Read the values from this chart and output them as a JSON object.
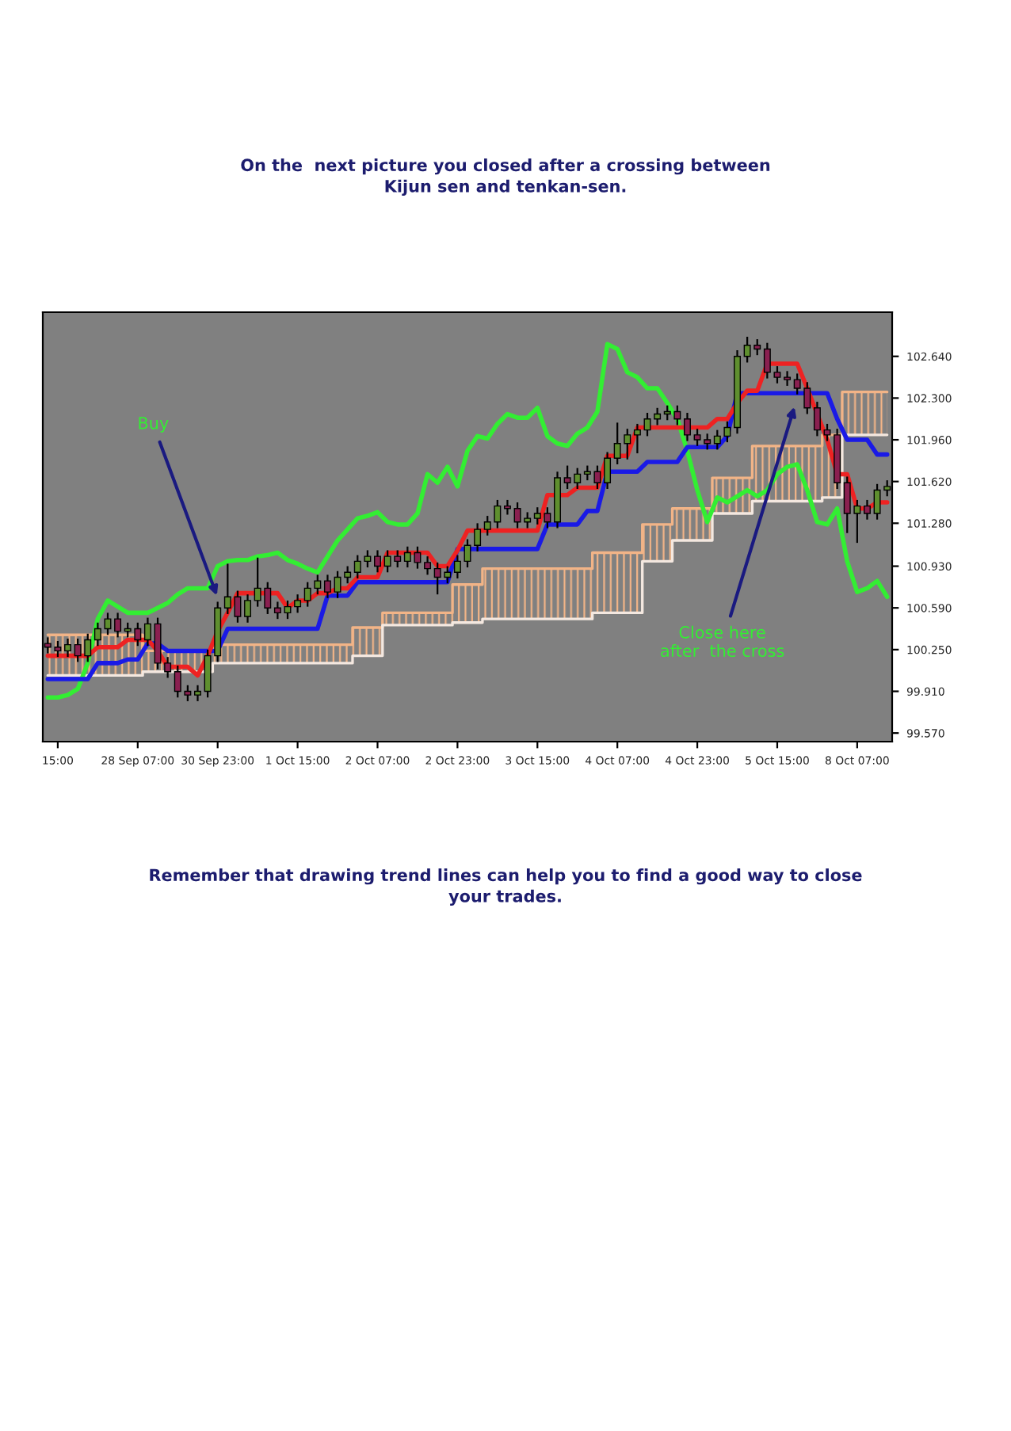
{
  "chart_data": {
    "type": "candlestick",
    "title": "On the  next picture you closed after a crossing between\nKijun sen and tenkan-sen.",
    "categories": [
      null,
      "15:00",
      null,
      null,
      null,
      null,
      null,
      null,
      null,
      "28 Sep 07:00",
      null,
      null,
      null,
      null,
      null,
      null,
      null,
      "30 Sep 23:00",
      null,
      null,
      null,
      null,
      null,
      null,
      null,
      "1 Oct 15:00",
      null,
      null,
      null,
      null,
      null,
      null,
      null,
      "2 Oct 07:00",
      null,
      null,
      null,
      null,
      null,
      null,
      null,
      "2 Oct 23:00",
      null,
      null,
      null,
      null,
      null,
      null,
      null,
      "3 Oct 15:00",
      null,
      null,
      null,
      null,
      null,
      null,
      null,
      "4 Oct 07:00",
      null,
      null,
      null,
      null,
      null,
      null,
      null,
      "4 Oct 23:00",
      null,
      null,
      null,
      null,
      null,
      null,
      null,
      "5 Oct 15:00",
      null,
      null,
      null,
      null,
      null,
      null,
      null,
      "8 Oct 07:00",
      null,
      null,
      null
    ],
    "ohlc": [
      [
        100.3,
        100.35,
        100.22,
        100.27
      ],
      [
        100.27,
        100.32,
        100.19,
        100.24
      ],
      [
        100.24,
        100.34,
        100.19,
        100.29
      ],
      [
        100.29,
        100.34,
        100.15,
        100.2
      ],
      [
        100.2,
        100.38,
        100.15,
        100.33
      ],
      [
        100.33,
        100.47,
        100.28,
        100.42
      ],
      [
        100.42,
        100.55,
        100.37,
        100.5
      ],
      [
        100.5,
        100.55,
        100.35,
        100.4
      ],
      [
        100.4,
        100.47,
        100.35,
        100.42
      ],
      [
        100.42,
        100.47,
        100.28,
        100.33
      ],
      [
        100.33,
        100.51,
        100.28,
        100.46
      ],
      [
        100.46,
        100.51,
        100.09,
        100.14
      ],
      [
        100.14,
        100.19,
        100.02,
        100.07
      ],
      [
        100.07,
        100.12,
        99.86,
        99.91
      ],
      [
        99.91,
        99.96,
        99.83,
        99.88
      ],
      [
        99.88,
        99.96,
        99.83,
        99.91
      ],
      [
        99.91,
        100.25,
        99.86,
        100.2
      ],
      [
        100.2,
        100.64,
        100.15,
        100.59
      ],
      [
        100.59,
        100.95,
        100.54,
        100.68
      ],
      [
        100.68,
        100.73,
        100.47,
        100.52
      ],
      [
        100.52,
        100.7,
        100.47,
        100.65
      ],
      [
        100.65,
        101.0,
        100.6,
        100.75
      ],
      [
        100.75,
        100.8,
        100.54,
        100.59
      ],
      [
        100.59,
        100.64,
        100.5,
        100.55
      ],
      [
        100.55,
        100.65,
        100.5,
        100.6
      ],
      [
        100.6,
        100.7,
        100.55,
        100.65
      ],
      [
        100.65,
        100.8,
        100.6,
        100.75
      ],
      [
        100.75,
        100.86,
        100.7,
        100.81
      ],
      [
        100.81,
        100.86,
        100.67,
        100.72
      ],
      [
        100.72,
        100.89,
        100.67,
        100.84
      ],
      [
        100.84,
        100.93,
        100.79,
        100.88
      ],
      [
        100.88,
        101.02,
        100.83,
        100.97
      ],
      [
        100.97,
        101.06,
        100.92,
        101.01
      ],
      [
        101.01,
        101.06,
        100.88,
        100.93
      ],
      [
        100.93,
        101.06,
        100.88,
        101.01
      ],
      [
        101.01,
        101.06,
        100.92,
        100.97
      ],
      [
        100.97,
        101.09,
        100.92,
        101.04
      ],
      [
        101.04,
        101.09,
        100.91,
        100.96
      ],
      [
        100.96,
        101.01,
        100.86,
        100.91
      ],
      [
        100.91,
        100.96,
        100.7,
        100.84
      ],
      [
        100.84,
        100.93,
        100.79,
        100.88
      ],
      [
        100.88,
        101.02,
        100.83,
        100.97
      ],
      [
        100.97,
        101.15,
        100.92,
        101.1
      ],
      [
        101.1,
        101.28,
        101.05,
        101.23
      ],
      [
        101.23,
        101.34,
        101.18,
        101.29
      ],
      [
        101.29,
        101.47,
        101.24,
        101.42
      ],
      [
        101.42,
        101.47,
        101.35,
        101.4
      ],
      [
        101.4,
        101.45,
        101.24,
        101.29
      ],
      [
        101.29,
        101.37,
        101.24,
        101.32
      ],
      [
        101.32,
        101.41,
        101.27,
        101.36
      ],
      [
        101.36,
        101.41,
        101.24,
        101.29
      ],
      [
        101.29,
        101.7,
        101.24,
        101.65
      ],
      [
        101.65,
        101.75,
        101.56,
        101.61
      ],
      [
        101.61,
        101.73,
        101.56,
        101.68
      ],
      [
        101.68,
        101.75,
        101.63,
        101.7
      ],
      [
        101.7,
        101.75,
        101.56,
        101.61
      ],
      [
        101.61,
        101.86,
        101.56,
        101.81
      ],
      [
        101.81,
        102.1,
        101.76,
        101.93
      ],
      [
        101.93,
        102.05,
        101.8,
        102.0
      ],
      [
        102.0,
        102.09,
        101.85,
        102.04
      ],
      [
        102.04,
        102.18,
        101.99,
        102.13
      ],
      [
        102.13,
        102.22,
        102.08,
        102.17
      ],
      [
        102.17,
        102.24,
        102.12,
        102.19
      ],
      [
        102.19,
        102.24,
        102.08,
        102.13
      ],
      [
        102.13,
        102.18,
        101.95,
        102.0
      ],
      [
        102.0,
        102.05,
        101.91,
        101.96
      ],
      [
        101.96,
        102.01,
        101.88,
        101.93
      ],
      [
        101.93,
        102.04,
        101.88,
        101.99
      ],
      [
        101.99,
        102.11,
        101.94,
        102.06
      ],
      [
        102.06,
        102.69,
        102.01,
        102.64
      ],
      [
        102.64,
        102.8,
        102.59,
        102.73
      ],
      [
        102.73,
        102.78,
        102.65,
        102.7
      ],
      [
        102.7,
        102.75,
        102.46,
        102.51
      ],
      [
        102.51,
        102.56,
        102.42,
        102.47
      ],
      [
        102.47,
        102.52,
        102.4,
        102.45
      ],
      [
        102.45,
        102.5,
        102.33,
        102.38
      ],
      [
        102.38,
        102.43,
        102.17,
        102.22
      ],
      [
        102.22,
        102.27,
        101.99,
        102.04
      ],
      [
        102.04,
        102.09,
        101.95,
        102.0
      ],
      [
        102.0,
        102.05,
        101.56,
        101.61
      ],
      [
        101.61,
        101.66,
        101.2,
        101.36
      ],
      [
        101.36,
        101.47,
        101.12,
        101.42
      ],
      [
        101.42,
        101.47,
        101.31,
        101.36
      ],
      [
        101.36,
        101.6,
        101.31,
        101.55
      ],
      [
        101.55,
        101.63,
        101.5,
        101.58
      ]
    ],
    "series": [
      {
        "type": "step",
        "color": "#f2b487",
        "values": [
          100.37,
          100.37,
          100.37,
          100.37,
          100.37,
          100.37,
          100.37,
          100.37,
          100.37,
          100.37,
          100.24,
          100.24,
          100.24,
          100.24,
          100.24,
          100.24,
          100.24,
          100.29,
          100.29,
          100.29,
          100.29,
          100.29,
          100.29,
          100.29,
          100.29,
          100.29,
          100.29,
          100.29,
          100.29,
          100.29,
          100.29,
          100.43,
          100.43,
          100.43,
          100.55,
          100.55,
          100.55,
          100.55,
          100.55,
          100.55,
          100.55,
          100.78,
          100.78,
          100.78,
          100.91,
          100.91,
          100.91,
          100.91,
          100.91,
          100.91,
          100.91,
          100.91,
          100.91,
          100.91,
          100.91,
          101.04,
          101.04,
          101.04,
          101.04,
          101.04,
          101.27,
          101.27,
          101.27,
          101.4,
          101.4,
          101.4,
          101.4,
          101.65,
          101.65,
          101.65,
          101.65,
          101.91,
          101.91,
          101.91,
          101.91,
          101.91,
          101.91,
          101.91,
          102.0,
          102.0,
          102.35,
          102.35,
          102.35,
          102.35,
          102.35
        ],
        "upper": [
          100.37,
          100.37,
          100.37,
          100.37,
          100.37,
          100.37,
          100.37,
          100.37,
          100.37,
          100.37,
          100.24,
          100.24,
          100.24,
          100.24,
          100.24,
          100.24,
          100.24,
          100.29,
          100.29,
          100.29,
          100.29,
          100.29,
          100.29,
          100.29,
          100.29,
          100.29,
          100.29,
          100.29,
          100.29,
          100.29,
          100.29,
          100.43,
          100.43,
          100.43,
          100.55,
          100.55,
          100.55,
          100.55,
          100.55,
          100.55,
          100.55,
          100.78,
          100.78,
          100.78,
          100.91,
          100.91,
          100.91,
          100.91,
          100.91,
          100.91,
          100.91,
          100.91,
          100.91,
          100.91,
          100.91,
          101.04,
          101.04,
          101.04,
          101.04,
          101.04,
          101.27,
          101.27,
          101.27,
          101.4,
          101.4,
          101.4,
          101.4,
          101.65,
          101.65,
          101.65,
          101.65,
          101.91,
          101.91,
          101.91,
          101.91,
          101.91,
          101.91,
          101.91,
          102.0,
          102.0,
          102.35,
          102.35,
          102.35,
          102.35,
          102.35
        ],
        "lower": [
          100.04,
          100.04,
          100.04,
          100.04,
          100.04,
          100.04,
          100.04,
          100.04,
          100.04,
          100.04,
          100.07,
          100.07,
          100.07,
          100.07,
          100.07,
          100.07,
          100.07,
          100.14,
          100.14,
          100.14,
          100.14,
          100.14,
          100.14,
          100.14,
          100.14,
          100.14,
          100.14,
          100.14,
          100.14,
          100.14,
          100.14,
          100.2,
          100.2,
          100.2,
          100.45,
          100.45,
          100.45,
          100.45,
          100.45,
          100.45,
          100.45,
          100.47,
          100.47,
          100.47,
          100.5,
          100.5,
          100.5,
          100.5,
          100.5,
          100.5,
          100.5,
          100.5,
          100.5,
          100.5,
          100.5,
          100.55,
          100.55,
          100.55,
          100.55,
          100.55,
          100.97,
          100.97,
          100.97,
          101.14,
          101.14,
          101.14,
          101.14,
          101.36,
          101.36,
          101.36,
          101.36,
          101.46,
          101.46,
          101.46,
          101.46,
          101.46,
          101.46,
          101.46,
          101.49,
          101.49,
          102.0,
          102.0,
          102.0,
          102.0,
          102.0
        ]
      },
      {
        "type": "step",
        "color": "#f4e8e0",
        "values": [
          100.04,
          100.04,
          100.04,
          100.04,
          100.04,
          100.04,
          100.04,
          100.04,
          100.04,
          100.04,
          100.07,
          100.07,
          100.07,
          100.07,
          100.07,
          100.07,
          100.07,
          100.14,
          100.14,
          100.14,
          100.14,
          100.14,
          100.14,
          100.14,
          100.14,
          100.14,
          100.14,
          100.14,
          100.14,
          100.14,
          100.14,
          100.2,
          100.2,
          100.2,
          100.45,
          100.45,
          100.45,
          100.45,
          100.45,
          100.45,
          100.45,
          100.47,
          100.47,
          100.47,
          100.5,
          100.5,
          100.5,
          100.5,
          100.5,
          100.5,
          100.5,
          100.5,
          100.5,
          100.5,
          100.5,
          100.55,
          100.55,
          100.55,
          100.55,
          100.55,
          100.97,
          100.97,
          100.97,
          101.14,
          101.14,
          101.14,
          101.14,
          101.36,
          101.36,
          101.36,
          101.36,
          101.46,
          101.46,
          101.46,
          101.46,
          101.46,
          101.46,
          101.46,
          101.49,
          101.49,
          102.0,
          102.0,
          102.0,
          102.0,
          102.0
        ]
      },
      {
        "type": "line",
        "color": "#33ee33",
        "values": [
          99.86,
          99.86,
          99.88,
          99.93,
          100.14,
          100.5,
          100.65,
          100.6,
          100.55,
          100.55,
          100.55,
          100.59,
          100.63,
          100.7,
          100.75,
          100.75,
          100.75,
          100.93,
          100.97,
          100.98,
          100.98,
          101.01,
          101.02,
          101.04,
          100.98,
          100.95,
          100.91,
          100.88,
          101.01,
          101.14,
          101.23,
          101.32,
          101.34,
          101.37,
          101.29,
          101.27,
          101.27,
          101.36,
          101.68,
          101.61,
          101.74,
          101.58,
          101.87,
          101.99,
          101.97,
          102.09,
          102.17,
          102.14,
          102.14,
          102.22,
          101.99,
          101.93,
          101.91,
          102.01,
          102.06,
          102.19,
          102.74,
          102.7,
          102.51,
          102.47,
          102.38,
          102.38,
          102.26,
          102.13,
          101.87,
          101.55,
          101.29,
          101.49,
          101.45,
          101.5,
          101.55,
          101.5,
          101.55,
          101.68,
          101.74,
          101.76,
          101.55,
          101.29,
          101.27,
          101.4,
          100.97,
          100.72,
          100.75,
          100.81,
          100.68
        ]
      },
      {
        "type": "line",
        "color": "#1a1ae6",
        "values": [
          100.01,
          100.01,
          100.01,
          100.01,
          100.01,
          100.14,
          100.14,
          100.14,
          100.17,
          100.17,
          100.3,
          100.3,
          100.24,
          100.24,
          100.24,
          100.24,
          100.24,
          100.24,
          100.42,
          100.42,
          100.42,
          100.42,
          100.42,
          100.42,
          100.42,
          100.42,
          100.42,
          100.42,
          100.69,
          100.69,
          100.69,
          100.8,
          100.8,
          100.8,
          100.8,
          100.8,
          100.8,
          100.8,
          100.8,
          100.8,
          100.8,
          101.07,
          101.07,
          101.07,
          101.07,
          101.07,
          101.07,
          101.07,
          101.07,
          101.07,
          101.27,
          101.27,
          101.27,
          101.27,
          101.38,
          101.38,
          101.7,
          101.7,
          101.7,
          101.7,
          101.78,
          101.78,
          101.78,
          101.78,
          101.9,
          101.9,
          101.9,
          101.9,
          101.99,
          102.34,
          102.34,
          102.34,
          102.34,
          102.34,
          102.34,
          102.34,
          102.34,
          102.34,
          102.34,
          102.13,
          101.96,
          101.96,
          101.96,
          101.84,
          101.84
        ]
      },
      {
        "type": "line",
        "color": "#ee2222",
        "values": [
          100.2,
          100.2,
          100.2,
          100.2,
          100.2,
          100.27,
          100.27,
          100.27,
          100.33,
          100.33,
          100.33,
          100.24,
          100.11,
          100.11,
          100.11,
          100.04,
          100.2,
          100.4,
          100.55,
          100.71,
          100.71,
          100.71,
          100.71,
          100.71,
          100.59,
          100.65,
          100.65,
          100.71,
          100.71,
          100.75,
          100.75,
          100.84,
          100.84,
          100.84,
          101.04,
          101.04,
          101.04,
          101.04,
          101.04,
          100.93,
          100.93,
          101.06,
          101.22,
          101.22,
          101.22,
          101.22,
          101.22,
          101.22,
          101.22,
          101.22,
          101.51,
          101.51,
          101.51,
          101.57,
          101.57,
          101.57,
          101.83,
          101.83,
          101.83,
          102.06,
          102.06,
          102.06,
          102.06,
          102.06,
          102.06,
          102.06,
          102.06,
          102.13,
          102.13,
          102.26,
          102.36,
          102.36,
          102.58,
          102.58,
          102.58,
          102.58,
          102.38,
          102.17,
          101.96,
          101.68,
          101.68,
          101.4,
          101.4,
          101.45,
          101.45
        ]
      }
    ],
    "ylim": [
      99.5,
      103.0
    ],
    "yticks": [
      {
        "value": 102.64,
        "label": "102.640"
      },
      {
        "value": 102.3,
        "label": "102.300"
      },
      {
        "value": 101.96,
        "label": "101.960"
      },
      {
        "value": 101.62,
        "label": "101.620"
      },
      {
        "value": 101.28,
        "label": "101.280"
      },
      {
        "value": 100.93,
        "label": "100.930"
      },
      {
        "value": 100.59,
        "label": "100.590"
      },
      {
        "value": 100.25,
        "label": "100.250"
      },
      {
        "value": 99.91,
        "label": "99.910"
      },
      {
        "value": 99.57,
        "label": "99.570"
      }
    ],
    "grid": false,
    "annotations": [
      "Buy",
      "Close here\nafter  the cross",
      "Remember that drawing trend lines can help you to find a good way to close\nyour trades."
    ]
  }
}
